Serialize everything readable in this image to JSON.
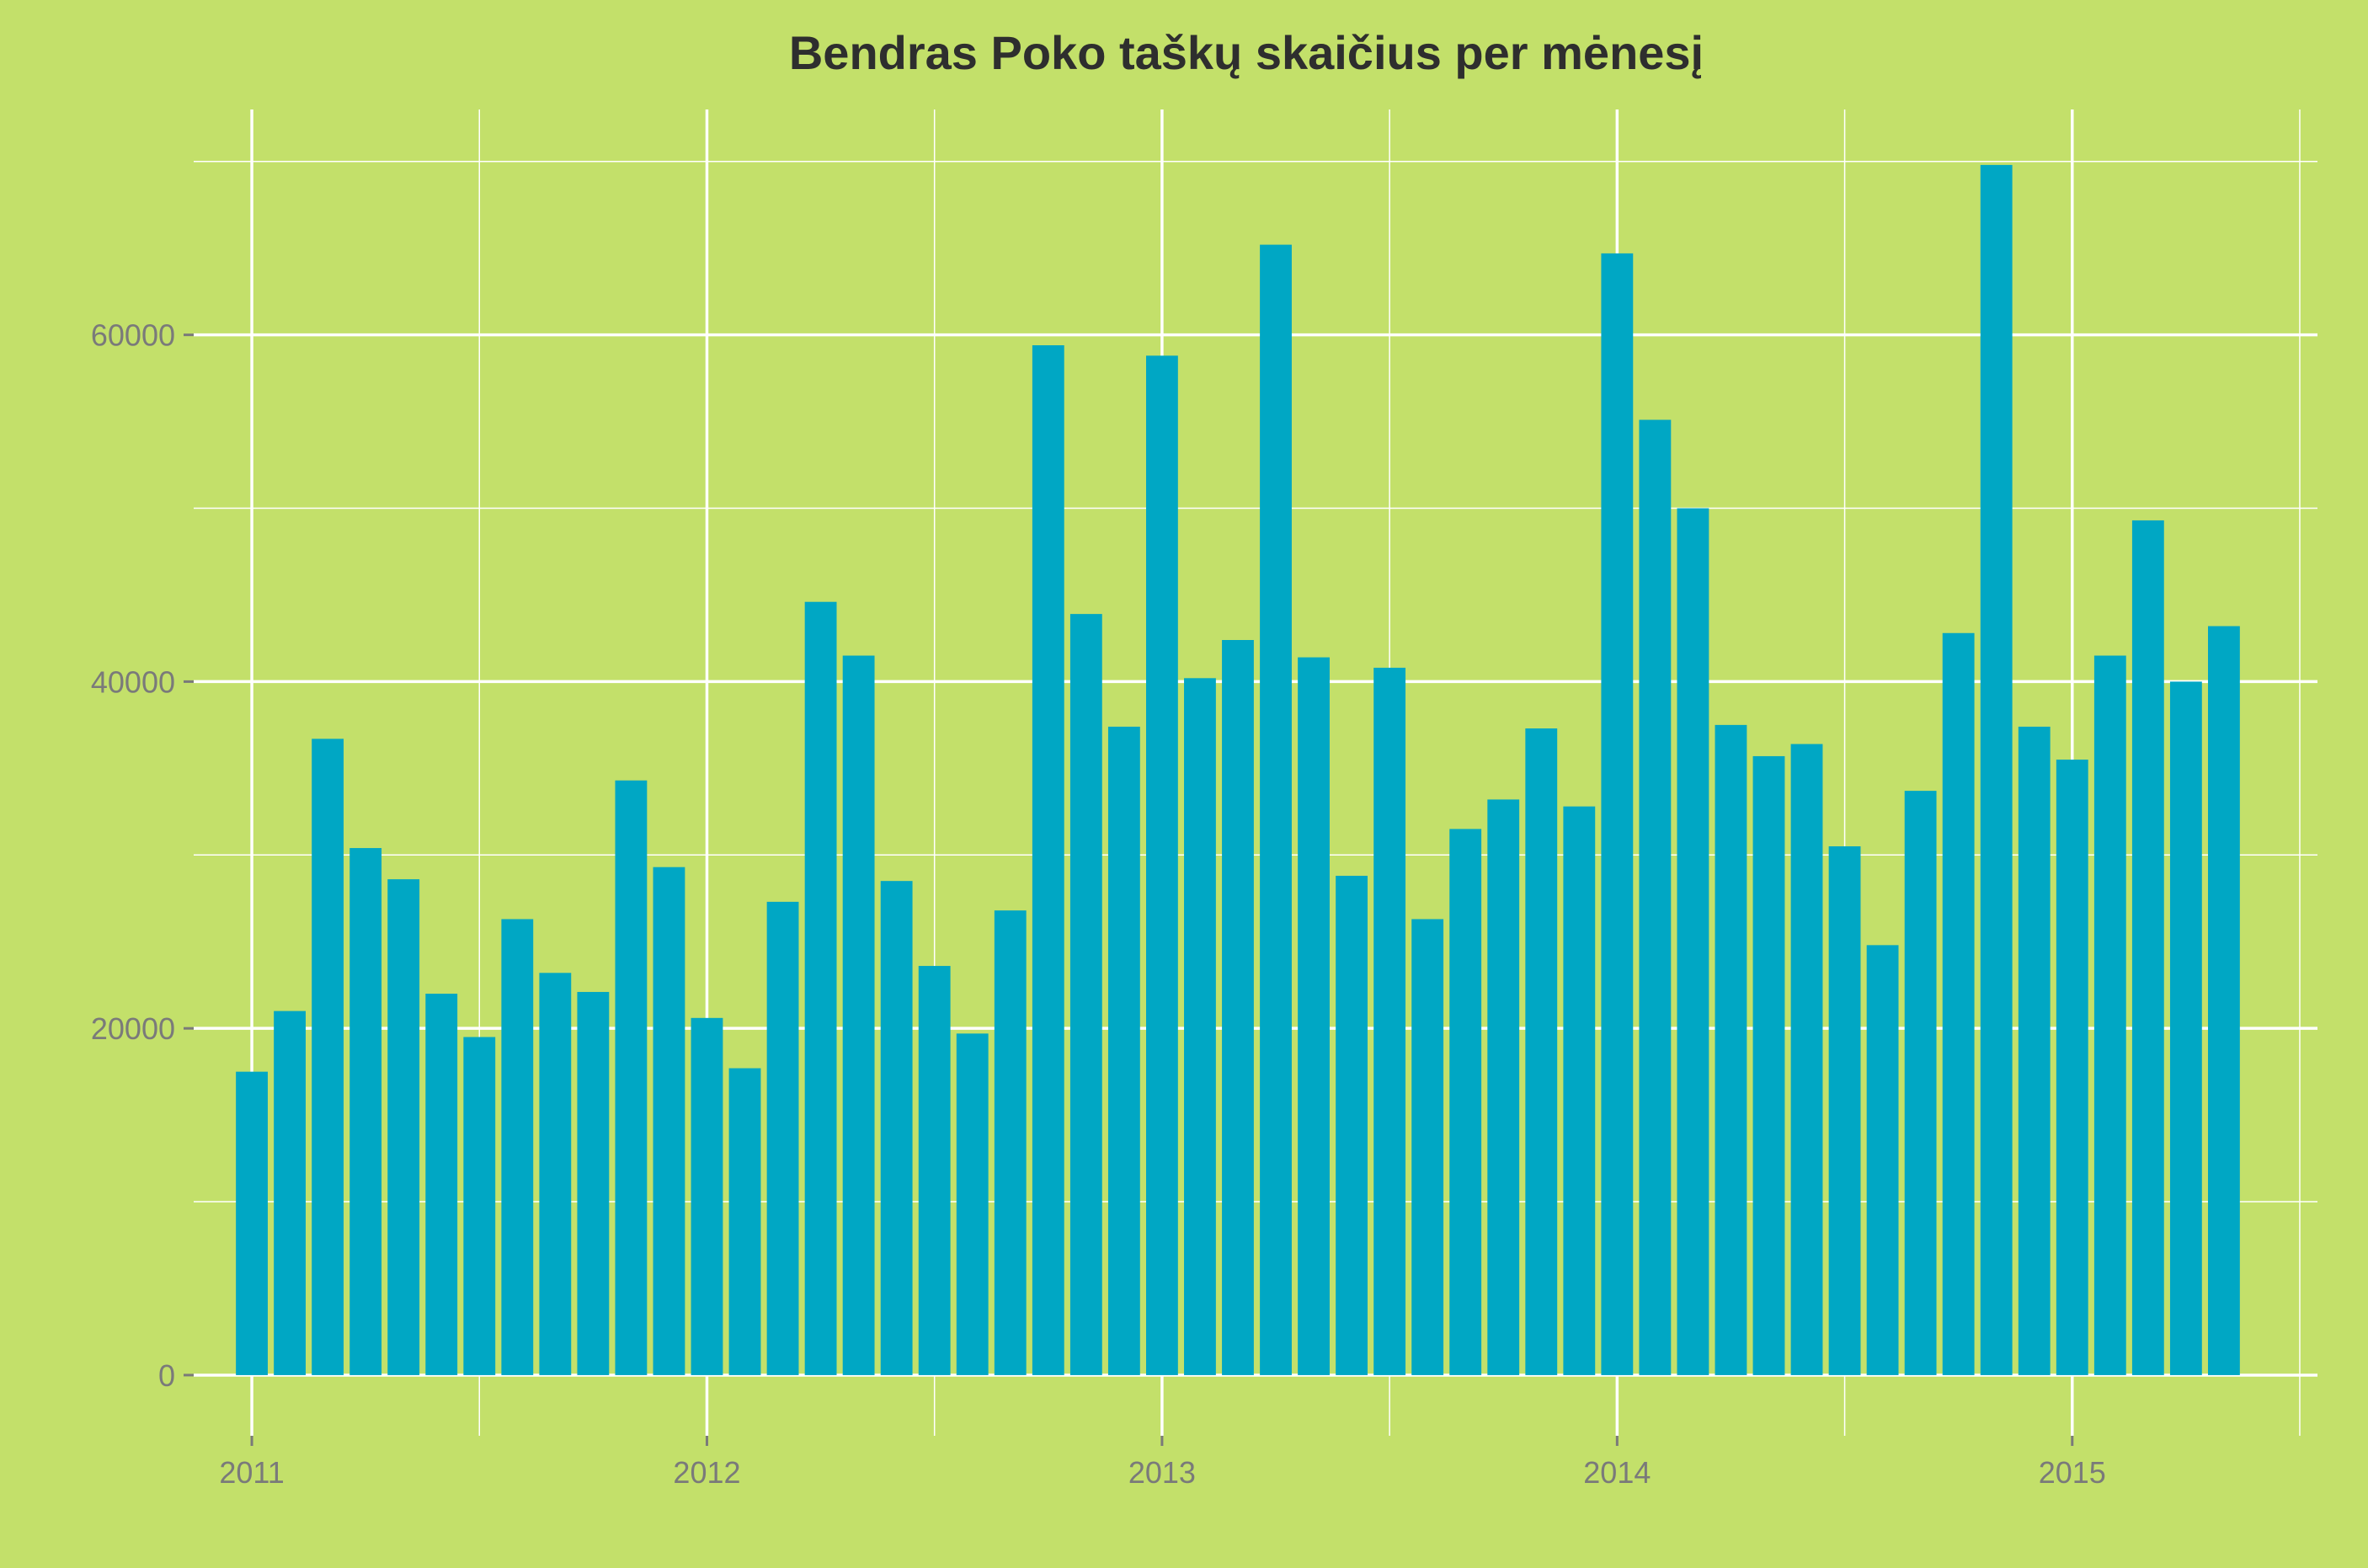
{
  "colors": {
    "background": "#c3e06a",
    "bar": "#00a7c4",
    "grid": "#ffffff",
    "title": "#2e2e2e",
    "tick_label": "#7a7a7a"
  },
  "chart_data": {
    "type": "bar",
    "title": "Bendras Poko taškų skaičius per mėnesį",
    "xlabel": "",
    "ylabel": "",
    "x_axis": "date (monthly)",
    "xlim": [
      "2010-11-15",
      "2015-07-15"
    ],
    "ylim": [
      -3500,
      73000
    ],
    "grid": true,
    "legend": "none",
    "x_ticks": [
      {
        "label": "2011",
        "date": "2011-01"
      },
      {
        "label": "2012",
        "date": "2012-01"
      },
      {
        "label": "2013",
        "date": "2013-01"
      },
      {
        "label": "2014",
        "date": "2014-01"
      },
      {
        "label": "2015",
        "date": "2015-01"
      }
    ],
    "y_ticks": [
      {
        "label": "0",
        "value": 0
      },
      {
        "label": "20000",
        "value": 20000
      },
      {
        "label": "40000",
        "value": 40000
      },
      {
        "label": "60000",
        "value": 60000
      }
    ],
    "categories": [
      "2011-01",
      "2011-02",
      "2011-03",
      "2011-04",
      "2011-05",
      "2011-06",
      "2011-07",
      "2011-08",
      "2011-09",
      "2011-10",
      "2011-11",
      "2011-12",
      "2012-01",
      "2012-02",
      "2012-03",
      "2012-04",
      "2012-05",
      "2012-06",
      "2012-07",
      "2012-08",
      "2012-09",
      "2012-10",
      "2012-11",
      "2012-12",
      "2013-01",
      "2013-02",
      "2013-03",
      "2013-04",
      "2013-05",
      "2013-06",
      "2013-07",
      "2013-08",
      "2013-09",
      "2013-10",
      "2013-11",
      "2013-12",
      "2014-01",
      "2014-02",
      "2014-03",
      "2014-04",
      "2014-05",
      "2014-06",
      "2014-07",
      "2014-08",
      "2014-09",
      "2014-10",
      "2014-11",
      "2014-12",
      "2015-01",
      "2015-02",
      "2015-03",
      "2015-04",
      "2015-05"
    ],
    "values": [
      17500,
      21000,
      36700,
      30400,
      28600,
      22000,
      19500,
      26300,
      23200,
      22100,
      34300,
      29300,
      20600,
      17700,
      27300,
      44600,
      41500,
      28500,
      23600,
      19700,
      26800,
      59400,
      43900,
      37400,
      58800,
      40200,
      42400,
      65200,
      41400,
      28800,
      40800,
      26300,
      31500,
      33200,
      37300,
      32800,
      64700,
      55100,
      50000,
      37500,
      35700,
      36400,
      30500,
      24800,
      33700,
      42800,
      69800,
      37400,
      35500,
      41500,
      49300,
      40000,
      43200
    ]
  }
}
